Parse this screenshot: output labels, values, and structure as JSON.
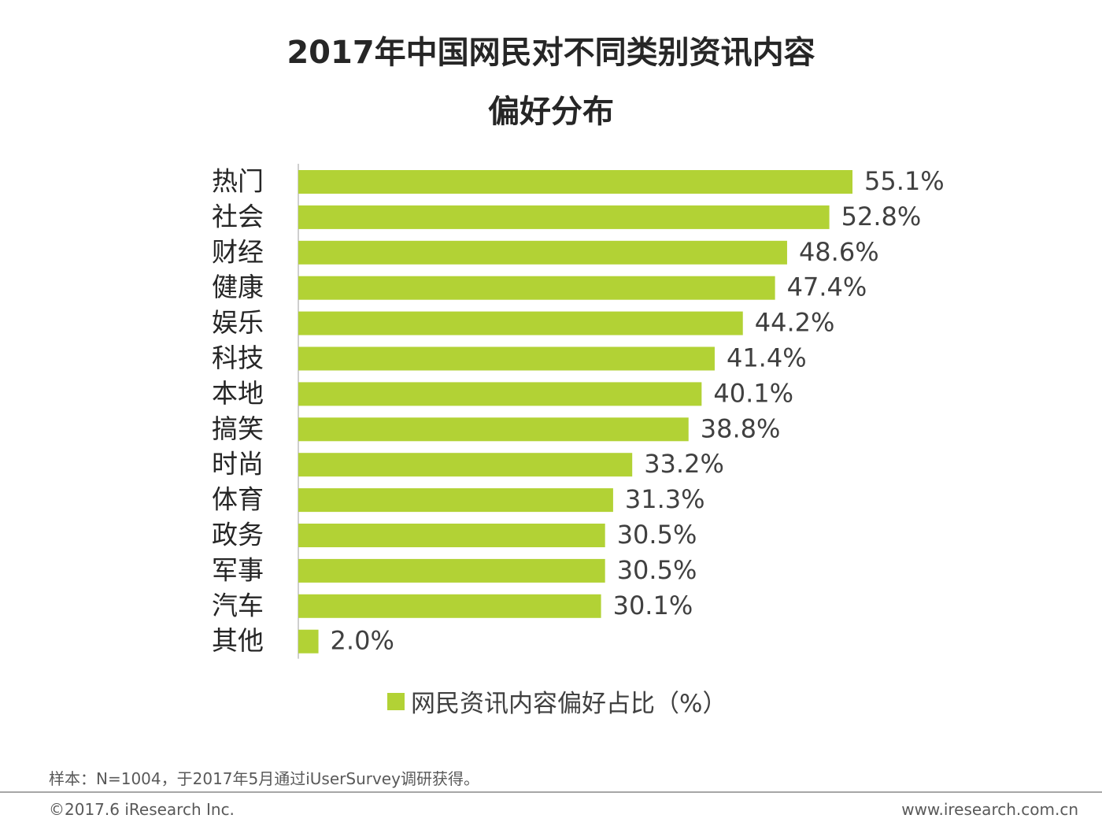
{
  "title": {
    "line1": "2017年中国网民对不同类别资讯内容",
    "line2": "偏好分布"
  },
  "legend": {
    "label": "网民资讯内容偏好占比（%）"
  },
  "footer": {
    "note": "样本：N=1004，于2017年5月通过iUserSurvey调研获得。",
    "copyright": "©2017.6 iResearch Inc.",
    "website": "www.iresearch.com.cn"
  },
  "colors": {
    "bar": "#b2d235",
    "axis": "#bfbfbf",
    "text": "#404040"
  },
  "chart_data": {
    "type": "bar",
    "orientation": "horizontal",
    "title": "2017年中国网民对不同类别资讯内容偏好分布",
    "categories": [
      "热门",
      "社会",
      "财经",
      "健康",
      "娱乐",
      "科技",
      "本地",
      "搞笑",
      "时尚",
      "体育",
      "政务",
      "军事",
      "汽车",
      "其他"
    ],
    "values": [
      55.1,
      52.8,
      48.6,
      47.4,
      44.2,
      41.4,
      40.1,
      38.8,
      33.2,
      31.3,
      30.5,
      30.5,
      30.1,
      2.0
    ],
    "value_labels": [
      "55.1%",
      "52.8%",
      "48.6%",
      "47.4%",
      "44.2%",
      "41.4%",
      "40.1%",
      "38.8%",
      "33.2%",
      "31.3%",
      "30.5%",
      "30.5%",
      "30.1%",
      "2.0%"
    ],
    "series": [
      {
        "name": "网民资讯内容偏好占比（%）"
      }
    ],
    "xlabel": "",
    "ylabel": "",
    "xlim": [
      0,
      60
    ],
    "grid": false,
    "legend_position": "bottom-center"
  }
}
